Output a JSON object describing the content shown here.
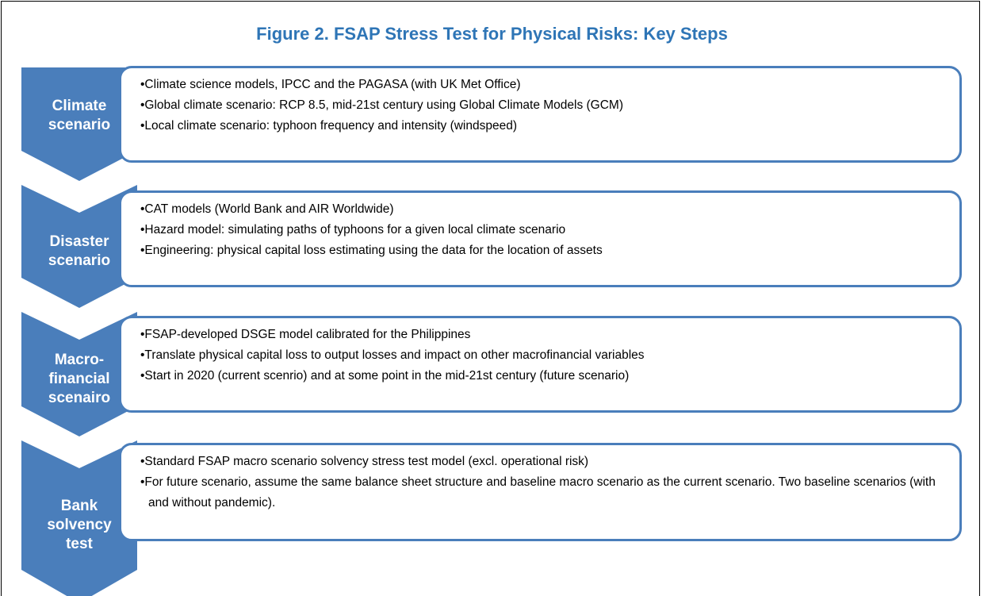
{
  "title": "Figure 2. FSAP Stress Test for Physical Risks: Key Steps",
  "steps": [
    {
      "label": [
        "Climate",
        "scenario"
      ],
      "bullets": [
        "•Climate science models, IPCC and the PAGASA (with UK Met Office)",
        "•Global climate scenario: RCP 8.5, mid-21st century using Global Climate Models (GCM)",
        "•Local climate scenario: typhoon frequency and intensity (windspeed)"
      ]
    },
    {
      "label": [
        "Disaster",
        "scenario"
      ],
      "bullets": [
        "•CAT models (World Bank and AIR Worldwide)",
        "•Hazard model: simulating paths of typhoons for a given local climate scenario",
        "•Engineering: physical capital loss estimating using the data for the location of assets"
      ]
    },
    {
      "label": [
        "Macro-",
        "financial",
        "scenairo"
      ],
      "bullets": [
        "•FSAP-developed DSGE model calibrated for the Philippines",
        "•Translate physical capital loss to output losses and impact on other macrofinancial variables",
        "•Start in 2020 (current scenrio) and at some point in the mid-21st century (future scenario)"
      ]
    },
    {
      "label": [
        "Bank",
        "solvency",
        "test"
      ],
      "bullets": [
        "•Standard FSAP macro scenario solvency stress test model (excl. operational risk)",
        "•For future scenario, assume the same balance sheet structure and baseline macro scenario as the current scenario. Two baseline scenarios (with and without pandemic)."
      ]
    }
  ]
}
